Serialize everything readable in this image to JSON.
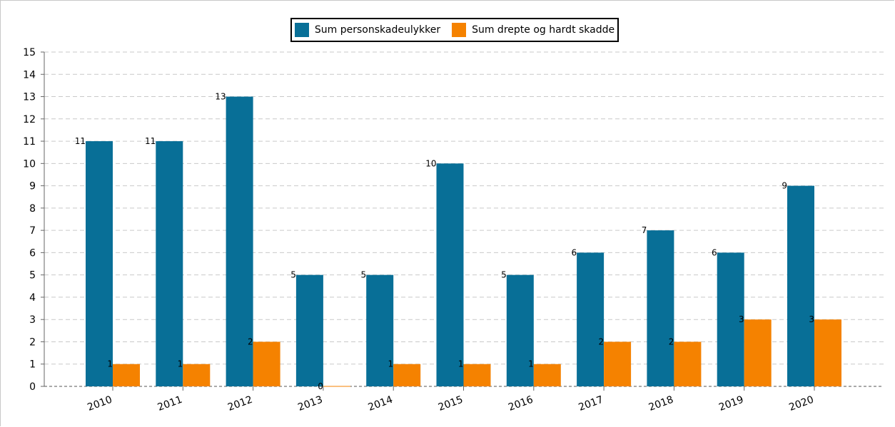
{
  "chart_data": {
    "type": "bar",
    "title": "",
    "xlabel": "",
    "ylabel": "",
    "categories": [
      "2010",
      "2011",
      "2012",
      "2013",
      "2014",
      "2015",
      "2016",
      "2017",
      "2018",
      "2019",
      "2020"
    ],
    "series": [
      {
        "name": "Sum personskadeulykker",
        "color": "#086f97",
        "values": [
          11,
          11,
          13,
          5,
          5,
          10,
          5,
          6,
          7,
          6,
          9
        ]
      },
      {
        "name": "Sum drepte og hardt skadde",
        "color": "#f58200",
        "values": [
          1,
          1,
          2,
          0,
          1,
          1,
          1,
          2,
          2,
          3,
          3
        ]
      }
    ],
    "ylim": [
      0,
      15
    ],
    "yticks": [
      0,
      1,
      2,
      3,
      4,
      5,
      6,
      7,
      8,
      9,
      10,
      11,
      12,
      13,
      14,
      15
    ],
    "grid": true,
    "legend_position": "top-center"
  }
}
